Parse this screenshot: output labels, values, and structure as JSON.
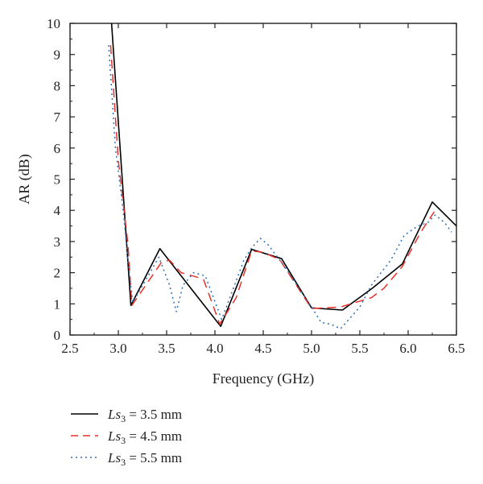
{
  "chart_data": {
    "type": "line",
    "xlabel": "Frequency (GHz)",
    "ylabel": "AR (dB)",
    "xlim": [
      2.5,
      6.5
    ],
    "ylim": [
      0,
      10
    ],
    "x_ticks": [
      "2.5",
      "3.0",
      "3.5",
      "4.0",
      "4.5",
      "5.0",
      "5.5",
      "6.0",
      "6.5"
    ],
    "y_ticks": [
      "0",
      "1",
      "2",
      "3",
      "4",
      "5",
      "6",
      "7",
      "8",
      "9",
      "10"
    ],
    "grid": false,
    "legend_position": "bottom-left, below plot",
    "series": [
      {
        "name_prefix": "Ls",
        "name_sub": "3",
        "name_suffix": " = 3.5 mm",
        "color": "#000000",
        "dash": "solid",
        "x": [
          2.93,
          3.13,
          3.43,
          3.75,
          4.06,
          4.38,
          4.69,
          5.0,
          5.32,
          5.63,
          5.94,
          6.25,
          6.5
        ],
        "y": [
          10.0,
          0.95,
          2.77,
          1.5,
          0.28,
          2.75,
          2.45,
          0.87,
          0.8,
          1.5,
          2.28,
          4.27,
          3.5
        ]
      },
      {
        "name_prefix": "Ls",
        "name_sub": "3",
        "name_suffix": " = 4.5 mm",
        "color": "#e8312a",
        "dash": "dashed",
        "x": [
          2.92,
          3.0,
          3.1,
          3.14,
          3.45,
          3.53,
          3.65,
          3.88,
          4.05,
          4.22,
          4.38,
          4.5,
          4.67,
          5.0,
          5.3,
          5.62,
          5.75,
          5.94,
          6.13,
          6.27
        ],
        "y": [
          9.3,
          5.6,
          2.9,
          0.95,
          2.35,
          2.4,
          2.0,
          1.8,
          0.35,
          1.2,
          2.7,
          2.65,
          2.42,
          0.85,
          0.9,
          1.2,
          1.5,
          2.2,
          3.3,
          3.95
        ]
      },
      {
        "name_prefix": "Ls",
        "name_sub": "3",
        "name_suffix": " = 5.5 mm",
        "color": "#2e6fb7",
        "dash": "dotted",
        "x": [
          2.9,
          2.97,
          3.05,
          3.1,
          3.15,
          3.42,
          3.53,
          3.6,
          3.67,
          3.78,
          3.9,
          4.07,
          4.3,
          4.38,
          4.47,
          4.55,
          4.72,
          5.0,
          5.1,
          5.2,
          5.3,
          5.5,
          5.62,
          5.82,
          5.96,
          6.1,
          6.2,
          6.28,
          6.38,
          6.45
        ],
        "y": [
          9.3,
          6.0,
          4.0,
          2.4,
          1.05,
          2.5,
          1.6,
          0.75,
          1.6,
          2.0,
          1.9,
          0.5,
          2.4,
          2.8,
          3.1,
          2.9,
          2.2,
          0.9,
          0.4,
          0.35,
          0.2,
          0.9,
          1.6,
          2.4,
          3.2,
          3.5,
          3.6,
          3.85,
          3.6,
          3.3
        ]
      }
    ]
  }
}
